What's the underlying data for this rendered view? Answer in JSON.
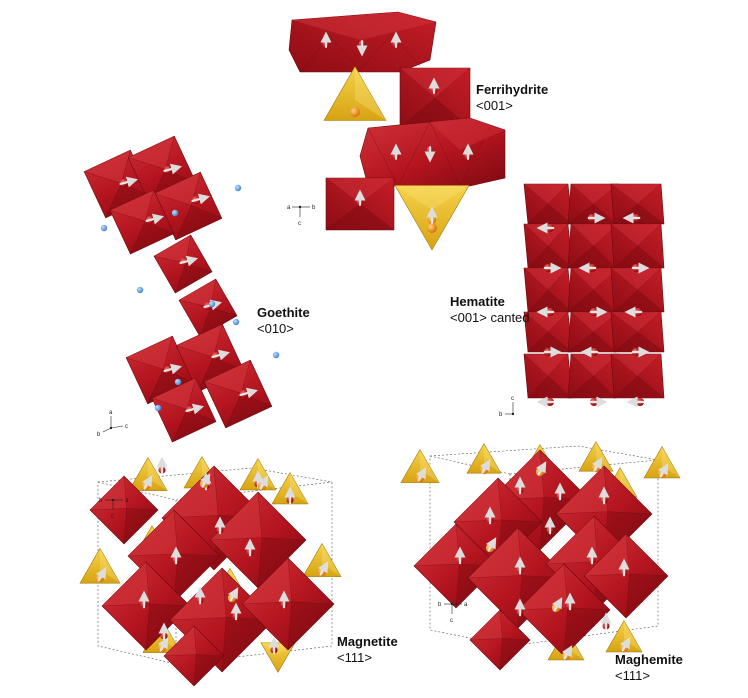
{
  "structures": [
    {
      "name": "Ferrihydrite",
      "direction": "<001>"
    },
    {
      "name": "Goethite",
      "direction": "<010>"
    },
    {
      "name": "Hematite",
      "direction": "<001> canted"
    },
    {
      "name": "Magnetite",
      "direction": "<111>"
    },
    {
      "name": "Maghemite",
      "direction": "<111>"
    }
  ],
  "axes": {
    "a": "a",
    "b": "b",
    "c": "c"
  },
  "colors": {
    "octahedra": "#b3141e",
    "octahedra_dark": "#7e0a12",
    "octahedra_light": "#d2343b",
    "tetrahedra": "#e2b41c",
    "tetrahedra_dark": "#b8860b",
    "iron_atom": "#b80000",
    "tetra_atom": "#f08a00",
    "hydrogen_atom": "#5c9ee0",
    "spin_arrow": "#e8e8e8"
  }
}
